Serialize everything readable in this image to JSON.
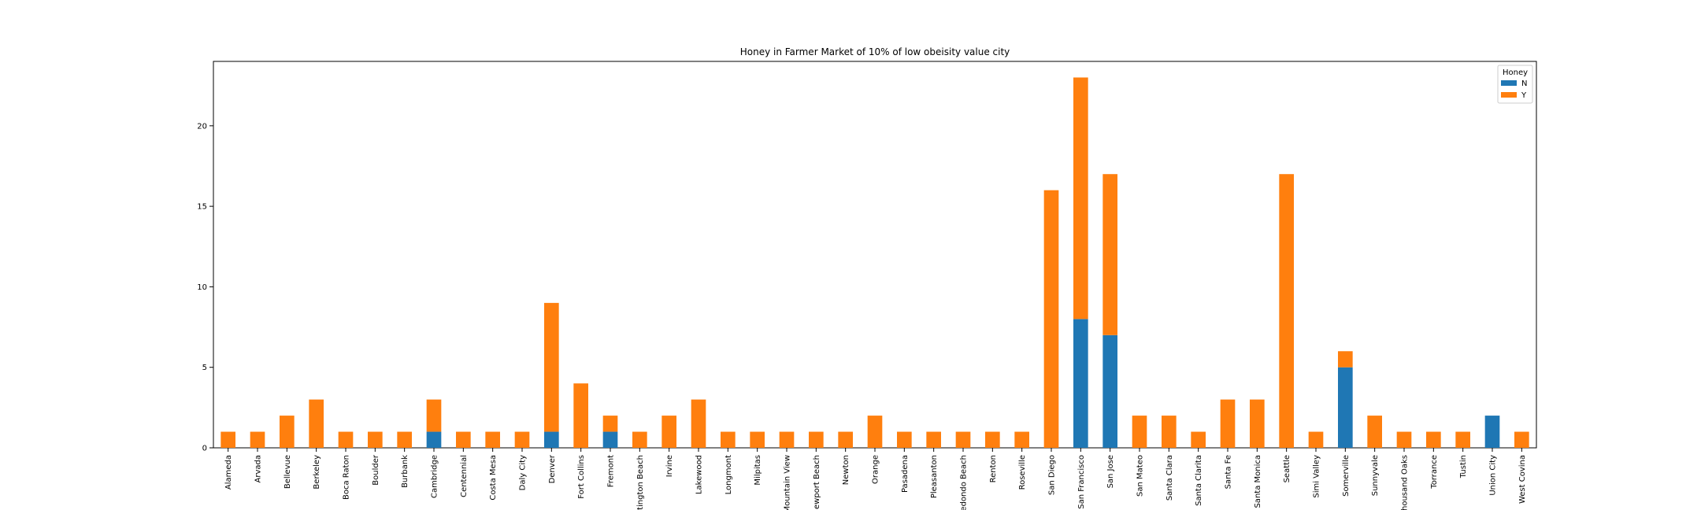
{
  "chart_data": {
    "type": "bar",
    "stacked": true,
    "title": "Honey in Farmer Market of 10% of low obeisity value city",
    "xlabel": "",
    "ylabel": "",
    "ylim": [
      0,
      24
    ],
    "yticks": [
      0,
      5,
      10,
      15,
      20
    ],
    "categories": [
      "Alameda",
      "Arvada",
      "Bellevue",
      "Berkeley",
      "Boca Raton",
      "Boulder",
      "Burbank",
      "Cambridge",
      "Centennial",
      "Costa Mesa",
      "Daly City",
      "Denver",
      "Fort Collins",
      "Fremont",
      "Huntington Beach",
      "Irvine",
      "Lakewood",
      "Longmont",
      "Milpitas",
      "Mountain View",
      "Newport Beach",
      "Newton",
      "Orange",
      "Pasadena",
      "Pleasanton",
      "Redondo Beach",
      "Renton",
      "Roseville",
      "San Diego",
      "San Francisco",
      "San Jose",
      "San Mateo",
      "Santa Clara",
      "Santa Clarita",
      "Santa Fe",
      "Santa Monica",
      "Seattle",
      "Simi Valley",
      "Somerville",
      "Sunnyvale",
      "Thousand Oaks",
      "Torrance",
      "Tustin",
      "Union City",
      "West Covina"
    ],
    "series": [
      {
        "name": "N",
        "color": "#1f77b4",
        "values": [
          0,
          0,
          0,
          0,
          0,
          0,
          0,
          1,
          0,
          0,
          0,
          1,
          0,
          1,
          0,
          0,
          0,
          0,
          0,
          0,
          0,
          0,
          0,
          0,
          0,
          0,
          0,
          0,
          0,
          8,
          7,
          0,
          0,
          0,
          0,
          0,
          0,
          0,
          5,
          0,
          0,
          0,
          0,
          2,
          0
        ]
      },
      {
        "name": "Y",
        "color": "#ff7f0e",
        "values": [
          1,
          1,
          2,
          3,
          1,
          1,
          1,
          2,
          1,
          1,
          1,
          8,
          4,
          1,
          1,
          2,
          3,
          1,
          1,
          1,
          1,
          1,
          2,
          1,
          1,
          1,
          1,
          1,
          16,
          15,
          10,
          2,
          2,
          1,
          3,
          3,
          17,
          1,
          1,
          2,
          1,
          1,
          1,
          0,
          1
        ]
      }
    ],
    "legend": {
      "title": "Honey",
      "position": "top-right"
    },
    "grid": false
  }
}
